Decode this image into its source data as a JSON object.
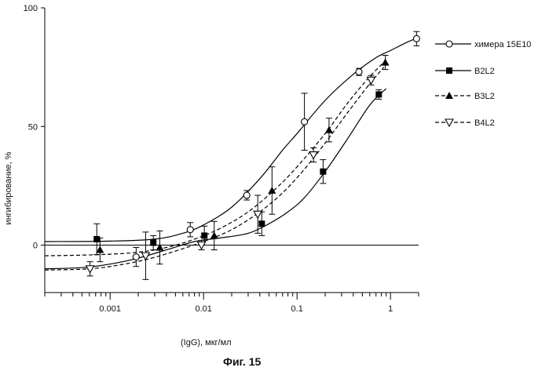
{
  "chart_data": {
    "type": "scatter",
    "title": "",
    "xlabel": "(IgG), мкг/мл",
    "ylabel": "ингибирование, %",
    "xscale": "log",
    "xlim": [
      0.0002,
      2
    ],
    "ylim": [
      -20,
      100
    ],
    "x_ticks": [
      {
        "value": 0.001,
        "label": "0.001"
      },
      {
        "value": 0.01,
        "label": "0.01"
      },
      {
        "value": 0.1,
        "label": "0.1"
      },
      {
        "value": 1,
        "label": "1"
      }
    ],
    "y_ticks": [
      {
        "value": 0,
        "label": "0"
      },
      {
        "value": 50,
        "label": "50"
      },
      {
        "value": 100,
        "label": "100"
      }
    ],
    "reference_line_y": 0,
    "grid": false,
    "legend_position": "right",
    "series": [
      {
        "name": "химера 15E10",
        "marker": "open-circle",
        "line": "solid",
        "color": "#000000",
        "points": [
          {
            "x": 0.0019,
            "y": -5,
            "err": 4
          },
          {
            "x": 0.0072,
            "y": 6.5,
            "err": 3
          },
          {
            "x": 0.029,
            "y": 21,
            "err": 2
          },
          {
            "x": 0.12,
            "y": 52,
            "err": 12
          },
          {
            "x": 0.46,
            "y": 73,
            "err": 1.5
          },
          {
            "x": 1.9,
            "y": 87,
            "err": 3
          }
        ],
        "curve": [
          [
            0.0002,
            1.5
          ],
          [
            0.001,
            1.7
          ],
          [
            0.003,
            2.5
          ],
          [
            0.006,
            5
          ],
          [
            0.01,
            8.5
          ],
          [
            0.02,
            16
          ],
          [
            0.04,
            28
          ],
          [
            0.07,
            40
          ],
          [
            0.1,
            47
          ],
          [
            0.2,
            61
          ],
          [
            0.4,
            72
          ],
          [
            0.7,
            79
          ],
          [
            1,
            82
          ],
          [
            1.5,
            85.5
          ],
          [
            2,
            87.5
          ]
        ]
      },
      {
        "name": "B2L2",
        "marker": "filled-square",
        "line": "solid",
        "color": "#000000",
        "points": [
          {
            "x": 0.00072,
            "y": 2.5,
            "err": 6.5
          },
          {
            "x": 0.0029,
            "y": 1,
            "err": 3
          },
          {
            "x": 0.0102,
            "y": 4,
            "err": 4
          },
          {
            "x": 0.042,
            "y": 9,
            "err": 5
          },
          {
            "x": 0.19,
            "y": 31,
            "err": 5
          },
          {
            "x": 0.75,
            "y": 63.5,
            "err": 2
          }
        ],
        "curve": [
          [
            0.0002,
            -10
          ],
          [
            0.0005,
            -9.5
          ],
          [
            0.001,
            -8
          ],
          [
            0.002,
            -5.5
          ],
          [
            0.004,
            -2
          ],
          [
            0.008,
            1.5
          ],
          [
            0.015,
            3
          ],
          [
            0.03,
            5
          ],
          [
            0.05,
            9
          ],
          [
            0.08,
            14
          ],
          [
            0.12,
            20
          ],
          [
            0.2,
            31
          ],
          [
            0.35,
            45
          ],
          [
            0.6,
            59
          ],
          [
            0.9,
            66
          ]
        ]
      },
      {
        "name": "B3L2",
        "marker": "filled-triangle",
        "line": "dashed",
        "color": "#000000",
        "points": [
          {
            "x": 0.00078,
            "y": -2,
            "err": 5
          },
          {
            "x": 0.0034,
            "y": -1,
            "err": 7
          },
          {
            "x": 0.013,
            "y": 4,
            "err": 6
          },
          {
            "x": 0.054,
            "y": 23,
            "err": 10
          },
          {
            "x": 0.22,
            "y": 48.5,
            "err": 5
          },
          {
            "x": 0.88,
            "y": 77,
            "err": 3
          }
        ],
        "curve": [
          [
            0.0002,
            -4.5
          ],
          [
            0.0008,
            -4
          ],
          [
            0.002,
            -3
          ],
          [
            0.004,
            -1
          ],
          [
            0.008,
            2.5
          ],
          [
            0.015,
            7
          ],
          [
            0.03,
            14
          ],
          [
            0.06,
            24
          ],
          [
            0.1,
            33
          ],
          [
            0.2,
            47
          ],
          [
            0.35,
            60
          ],
          [
            0.6,
            71
          ],
          [
            0.9,
            78
          ]
        ]
      },
      {
        "name": "B4L2",
        "marker": "open-triangle-down",
        "line": "dashed",
        "color": "#000000",
        "points": [
          {
            "x": 0.00061,
            "y": -10,
            "err": 3
          },
          {
            "x": 0.0024,
            "y": -4.5,
            "err": 10
          },
          {
            "x": 0.0095,
            "y": 0,
            "err": 2
          },
          {
            "x": 0.038,
            "y": 13,
            "err": 8
          },
          {
            "x": 0.15,
            "y": 38,
            "err": 3
          },
          {
            "x": 0.62,
            "y": 69.5,
            "err": 2
          }
        ],
        "curve": [
          [
            0.0002,
            -10.5
          ],
          [
            0.0006,
            -10
          ],
          [
            0.0012,
            -8.5
          ],
          [
            0.0025,
            -6
          ],
          [
            0.005,
            -2.5
          ],
          [
            0.01,
            1.5
          ],
          [
            0.02,
            6.5
          ],
          [
            0.04,
            14
          ],
          [
            0.07,
            22
          ],
          [
            0.12,
            32
          ],
          [
            0.2,
            43
          ],
          [
            0.35,
            56
          ],
          [
            0.6,
            68
          ],
          [
            0.85,
            75
          ]
        ]
      }
    ]
  },
  "caption": "Фиг. 15"
}
